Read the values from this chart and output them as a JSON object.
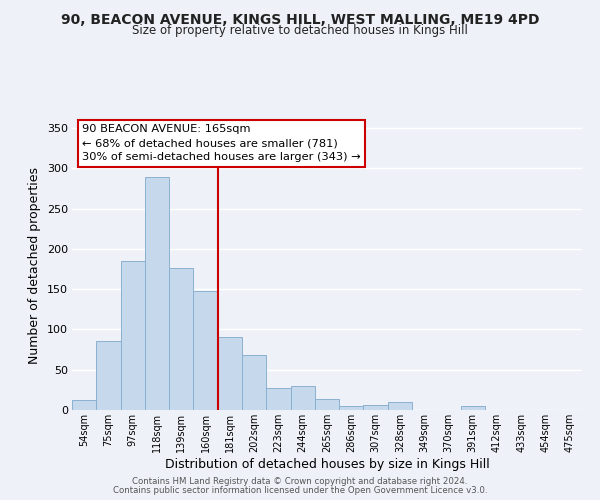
{
  "title1": "90, BEACON AVENUE, KINGS HILL, WEST MALLING, ME19 4PD",
  "title2": "Size of property relative to detached houses in Kings Hill",
  "xlabel": "Distribution of detached houses by size in Kings Hill",
  "ylabel": "Number of detached properties",
  "bar_labels": [
    "54sqm",
    "75sqm",
    "97sqm",
    "118sqm",
    "139sqm",
    "160sqm",
    "181sqm",
    "202sqm",
    "223sqm",
    "244sqm",
    "265sqm",
    "286sqm",
    "307sqm",
    "328sqm",
    "349sqm",
    "370sqm",
    "391sqm",
    "412sqm",
    "433sqm",
    "454sqm",
    "475sqm"
  ],
  "bar_heights": [
    13,
    86,
    185,
    289,
    176,
    148,
    91,
    68,
    27,
    30,
    14,
    5,
    6,
    10,
    0,
    0,
    5,
    0,
    0,
    0,
    0
  ],
  "bar_color": "#c5d8ec",
  "bar_edge_color": "#8ab0d0",
  "vline_x": 5.5,
  "vline_color": "#cc0000",
  "ylim": [
    0,
    360
  ],
  "yticks": [
    0,
    50,
    100,
    150,
    200,
    250,
    300,
    350
  ],
  "annotation_title": "90 BEACON AVENUE: 165sqm",
  "annotation_line1": "← 68% of detached houses are smaller (781)",
  "annotation_line2": "30% of semi-detached houses are larger (343) →",
  "annotation_box_color": "#ffffff",
  "annotation_box_edge": "#cc0000",
  "footer1": "Contains HM Land Registry data © Crown copyright and database right 2024.",
  "footer2": "Contains public sector information licensed under the Open Government Licence v3.0.",
  "background_color": "#eef2f8",
  "grid_color": "#ffffff"
}
